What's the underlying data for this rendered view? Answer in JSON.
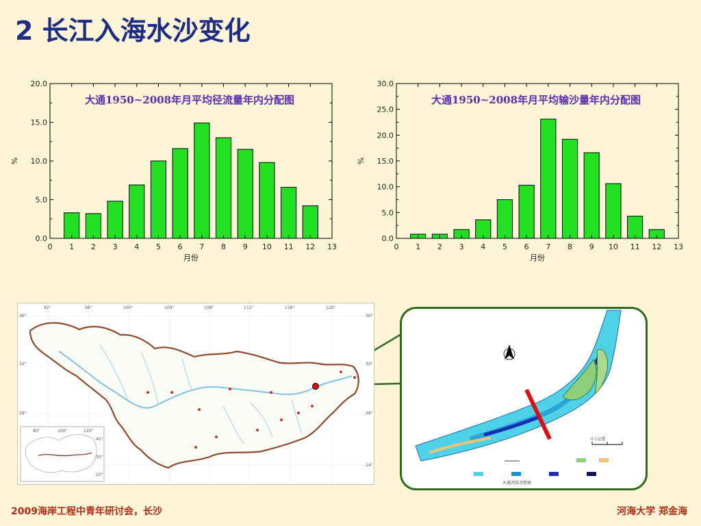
{
  "slide": {
    "title": "2 长江入海水沙变化",
    "footer_left": "2009海岸工程中青年研讨会，长沙",
    "footer_right": "河海大学  郑金海"
  },
  "colors": {
    "bar_fill": "#22e022",
    "bar_stroke": "#000000",
    "chart_title": "#5a2db0",
    "slide_title": "#1d2c87",
    "footer": "#b22b14",
    "background": "#fdf5d6",
    "map_border": "#8b4a2b",
    "river": "#7cc3e6",
    "inset_border": "#2f6b1c",
    "section_line": "#e01010"
  },
  "chart_data": [
    {
      "type": "bar",
      "title": "大通1950~2008年月平均径流量年内分配图",
      "xlabel": "月份",
      "ylabel": "%",
      "xlim": [
        0,
        13
      ],
      "ylim": [
        0,
        20
      ],
      "x_ticks": [
        0,
        1,
        2,
        3,
        4,
        5,
        6,
        7,
        8,
        9,
        10,
        11,
        12,
        13
      ],
      "y_ticks": [
        "0.0",
        "5.0",
        "10.0",
        "15.0",
        "20.0"
      ],
      "categories": [
        1,
        2,
        3,
        4,
        5,
        6,
        7,
        8,
        9,
        10,
        11,
        12
      ],
      "values": [
        3.3,
        3.2,
        4.8,
        6.9,
        10.0,
        11.6,
        14.9,
        13.0,
        11.5,
        9.8,
        6.6,
        4.2
      ],
      "grid": false,
      "title_placement": "inside-top"
    },
    {
      "type": "bar",
      "title": "大通1950~2008年月平均输沙量年内分配图",
      "xlabel": "月份",
      "ylabel": "%",
      "xlim": [
        0,
        13
      ],
      "ylim": [
        0,
        30
      ],
      "x_ticks": [
        0,
        1,
        2,
        3,
        4,
        5,
        6,
        7,
        8,
        9,
        10,
        11,
        12,
        13
      ],
      "y_ticks": [
        "0.0",
        "5.0",
        "10.0",
        "15.0",
        "20.0",
        "25.0",
        "30.0"
      ],
      "categories": [
        1,
        2,
        3,
        4,
        5,
        6,
        7,
        8,
        9,
        10,
        11,
        12
      ],
      "values": [
        0.8,
        0.8,
        1.7,
        3.6,
        7.5,
        10.3,
        23.1,
        19.2,
        16.6,
        10.6,
        4.3,
        1.7
      ],
      "grid": false,
      "title_placement": "inside-top"
    }
  ],
  "map": {
    "lon_labels": [
      "92°",
      "96°",
      "100°",
      "104°",
      "108°",
      "112°",
      "116°",
      "120°"
    ],
    "lat_labels_left": [
      "36°",
      "32°",
      "28°"
    ],
    "lat_labels_right": [
      "36°",
      "32°",
      "28°",
      "24°"
    ],
    "inset_lon_labels": [
      "80°",
      "100°",
      "120°"
    ],
    "inset_lat_labels": [
      "40°",
      "30°",
      "20°"
    ]
  },
  "inset_map": {
    "scale_label": "0        1公里",
    "caption": "大通河段河势图"
  }
}
